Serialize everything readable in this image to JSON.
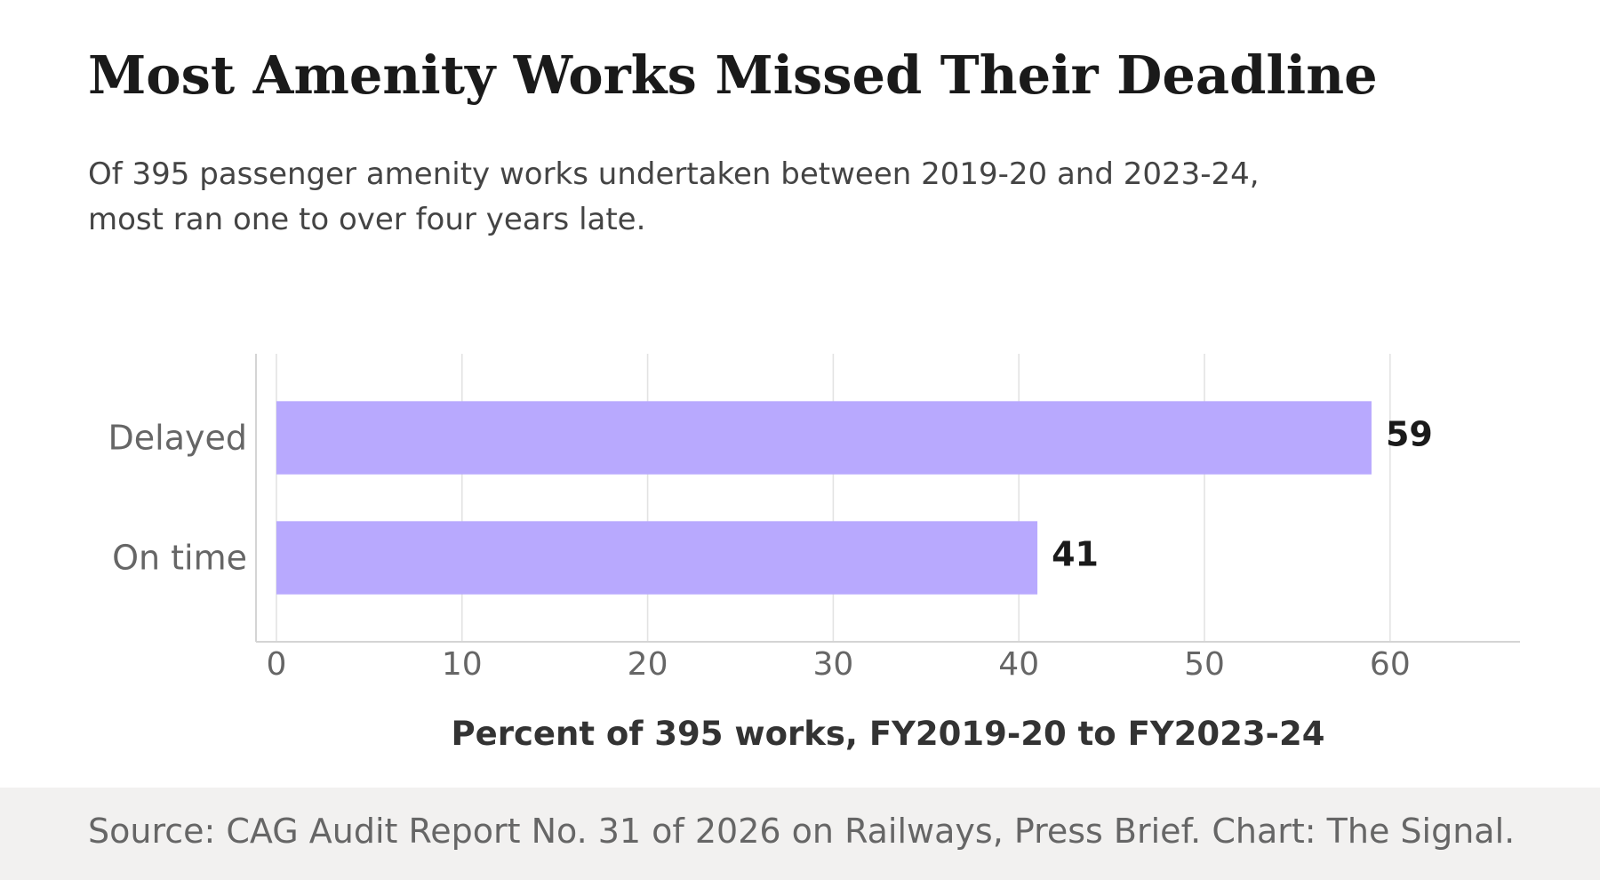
{
  "title": "Most Amenity Works Missed Their Deadline",
  "subtitle_lines": [
    "Of 395 passenger amenity works undertaken between 2019-20 and 2023-24,",
    "most ran one to over four years late."
  ],
  "source": "Source: CAG Audit Report No. 31 of 2026 on Railways, Press Brief. Chart: The Signal.",
  "chart_data": {
    "type": "bar",
    "orientation": "horizontal",
    "categories": [
      "Delayed",
      "On time"
    ],
    "values": [
      59,
      41
    ],
    "data_labels": [
      "59",
      "41"
    ],
    "xlabel": "Percent of 395 works, FY2019-20 to FY2023-24",
    "ylabel": "",
    "xlim": [
      -1.1,
      67
    ],
    "xticks": [
      0,
      10,
      20,
      30,
      40,
      50,
      60
    ],
    "xtick_labels": [
      "0",
      "10",
      "20",
      "30",
      "40",
      "50",
      "60"
    ],
    "grid": "vertical",
    "bar_color": "#b8a9fe"
  }
}
